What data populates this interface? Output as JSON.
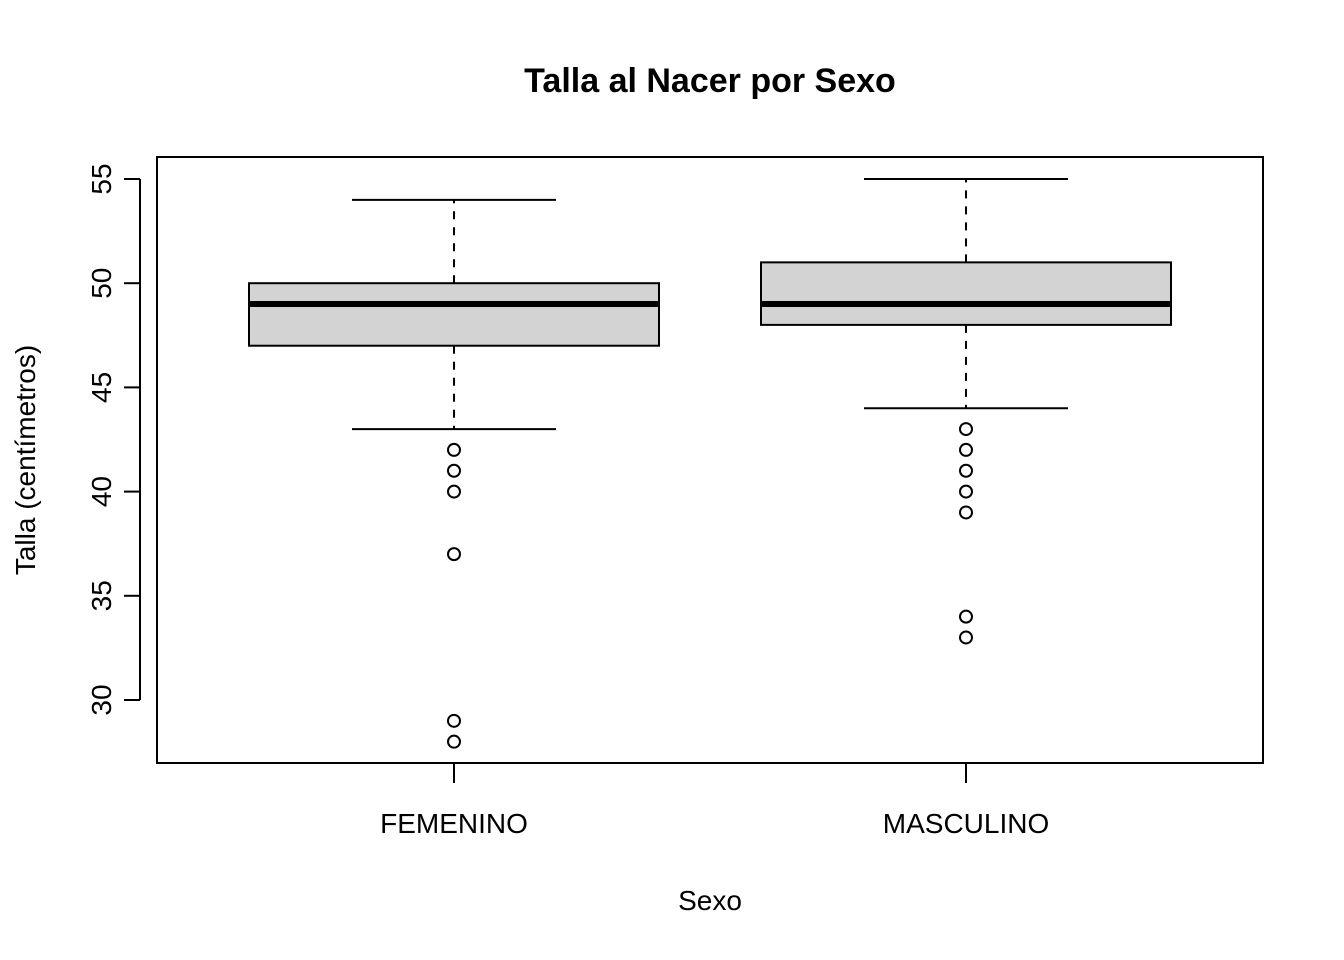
{
  "chart_data": {
    "type": "boxplot",
    "title": "Talla al Nacer por Sexo",
    "xlabel": "Sexo",
    "ylabel": "Talla (centímetros)",
    "ylim": [
      27,
      56
    ],
    "yticks": [
      30,
      35,
      40,
      45,
      50,
      55
    ],
    "categories": [
      "FEMENINO",
      "MASCULINO"
    ],
    "boxes": [
      {
        "category": "FEMENINO",
        "whisker_low": 43,
        "q1": 47,
        "median": 49,
        "q3": 50,
        "whisker_high": 54,
        "outliers": [
          42,
          41,
          40,
          37,
          29,
          28
        ]
      },
      {
        "category": "MASCULINO",
        "whisker_low": 44,
        "q1": 48,
        "median": 49,
        "q3": 51,
        "whisker_high": 55,
        "outliers": [
          43,
          42,
          41,
          40,
          39,
          34,
          33
        ]
      }
    ],
    "box_fill": "#d3d3d3",
    "grid": false,
    "legend": "none"
  }
}
